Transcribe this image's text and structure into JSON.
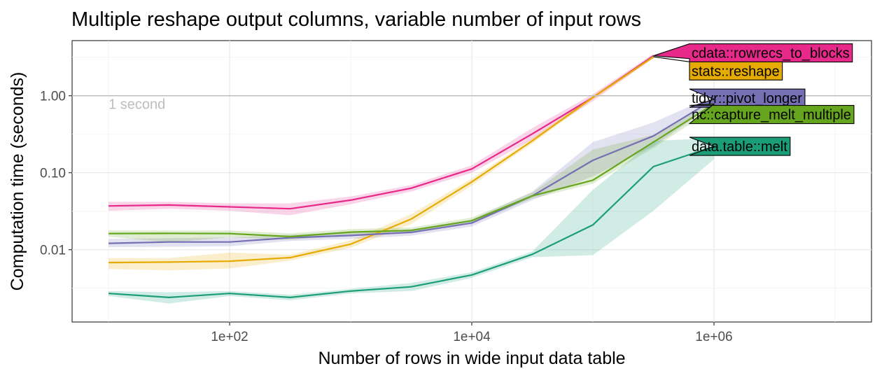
{
  "chart_data": {
    "type": "line",
    "title": "Multiple reshape output columns, variable number of input rows",
    "xlabel": "Number of rows in wide input data table",
    "ylabel": "Computation time (seconds)",
    "x_scale": "log10",
    "y_scale": "log10",
    "xlim": [
      5,
      20000000
    ],
    "ylim": [
      0.00115,
      5.2
    ],
    "x_ticks": [
      {
        "value": 100,
        "label": "1e+02"
      },
      {
        "value": 10000,
        "label": "1e+04"
      },
      {
        "value": 1000000,
        "label": "1e+06"
      }
    ],
    "y_ticks": [
      {
        "value": 0.01,
        "label": "0.01"
      },
      {
        "value": 0.1,
        "label": "0.10"
      },
      {
        "value": 1,
        "label": "1.00"
      }
    ],
    "reference_line": {
      "y": 1,
      "label": "1 second",
      "color": "#bdbdbd"
    },
    "grid": true,
    "series": [
      {
        "name": "cdata::rowrecs_to_blocks",
        "color": "#e7298a",
        "x": [
          10,
          31.6,
          100,
          316,
          1000,
          3162,
          10000,
          31623,
          100000,
          316228
        ],
        "y": [
          0.037,
          0.038,
          0.036,
          0.034,
          0.044,
          0.063,
          0.112,
          0.32,
          0.95,
          3.3
        ],
        "lower": [
          0.032,
          0.034,
          0.032,
          0.028,
          0.039,
          0.057,
          0.1,
          0.27,
          0.85,
          3.1
        ],
        "upper": [
          0.042,
          0.042,
          0.04,
          0.04,
          0.049,
          0.069,
          0.125,
          0.38,
          1.05,
          3.5
        ]
      },
      {
        "name": "stats::reshape",
        "color": "#e6ab02",
        "x": [
          10,
          31.6,
          100,
          316,
          1000,
          3162,
          10000,
          31623,
          100000,
          316228
        ],
        "y": [
          0.0068,
          0.0069,
          0.0071,
          0.0079,
          0.0118,
          0.025,
          0.076,
          0.26,
          0.95,
          3.2
        ],
        "lower": [
          0.0056,
          0.0054,
          0.0057,
          0.0072,
          0.0106,
          0.0215,
          0.068,
          0.24,
          0.9,
          3.05
        ],
        "upper": [
          0.0078,
          0.0078,
          0.0092,
          0.0086,
          0.0132,
          0.029,
          0.084,
          0.28,
          1.0,
          3.35
        ]
      },
      {
        "name": "tidyr::pivot_longer",
        "color": "#7570b3",
        "x": [
          10,
          31.6,
          100,
          316,
          1000,
          3162,
          10000,
          31623,
          100000,
          316228,
          1000000
        ],
        "y": [
          0.0121,
          0.0126,
          0.0126,
          0.0143,
          0.0153,
          0.0168,
          0.0222,
          0.05,
          0.145,
          0.3,
          0.9
        ],
        "lower": [
          0.0108,
          0.0109,
          0.0111,
          0.013,
          0.0138,
          0.0152,
          0.02,
          0.044,
          0.09,
          0.22,
          0.78
        ],
        "upper": [
          0.0138,
          0.0141,
          0.0144,
          0.0156,
          0.0168,
          0.0184,
          0.0245,
          0.057,
          0.25,
          0.45,
          1.0
        ]
      },
      {
        "name": "nc::capture_melt_multiple",
        "color": "#66a61e",
        "x": [
          10,
          31.6,
          100,
          316,
          1000,
          3162,
          10000,
          31623,
          100000,
          316228,
          1000000
        ],
        "y": [
          0.0162,
          0.0163,
          0.0162,
          0.0148,
          0.0169,
          0.0178,
          0.0238,
          0.05,
          0.08,
          0.25,
          0.78
        ],
        "lower": [
          0.0148,
          0.0124,
          0.0145,
          0.0135,
          0.0155,
          0.0163,
          0.0219,
          0.046,
          0.072,
          0.21,
          0.68
        ],
        "upper": [
          0.0178,
          0.0177,
          0.0178,
          0.0163,
          0.0185,
          0.0194,
          0.0262,
          0.055,
          0.2,
          0.31,
          0.88
        ]
      },
      {
        "name": "data.table::melt",
        "color": "#1b9e77",
        "x": [
          10,
          31.6,
          100,
          316,
          1000,
          3162,
          10000,
          31623,
          100000,
          316228,
          1000000
        ],
        "y": [
          0.0027,
          0.0024,
          0.0027,
          0.0024,
          0.0029,
          0.0033,
          0.0047,
          0.0087,
          0.021,
          0.12,
          0.22
        ],
        "lower": [
          0.0025,
          0.002,
          0.0025,
          0.0022,
          0.0027,
          0.0029,
          0.0043,
          0.008,
          0.0085,
          0.032,
          0.15
        ],
        "upper": [
          0.0029,
          0.0028,
          0.0029,
          0.0026,
          0.0031,
          0.0037,
          0.0051,
          0.0095,
          0.06,
          0.26,
          0.28
        ]
      }
    ],
    "direct_labels": [
      {
        "text": "cdata::rowrecs_to_blocks",
        "series": 0,
        "fill": "#e7298a",
        "label_y": 3.6
      },
      {
        "text": "stats::reshape",
        "series": 1,
        "fill": "#e6ab02",
        "label_y": 2.1
      },
      {
        "text": "tidyr::pivot_longer",
        "series": 2,
        "fill": "#7570b3",
        "label_y": 0.93
      },
      {
        "text": "nc::capture_melt_multiple",
        "series": 3,
        "fill": "#66a61e",
        "label_y": 0.57
      },
      {
        "text": "data.table::melt",
        "series": 4,
        "fill": "#1b9e77",
        "label_y": 0.22
      }
    ]
  }
}
